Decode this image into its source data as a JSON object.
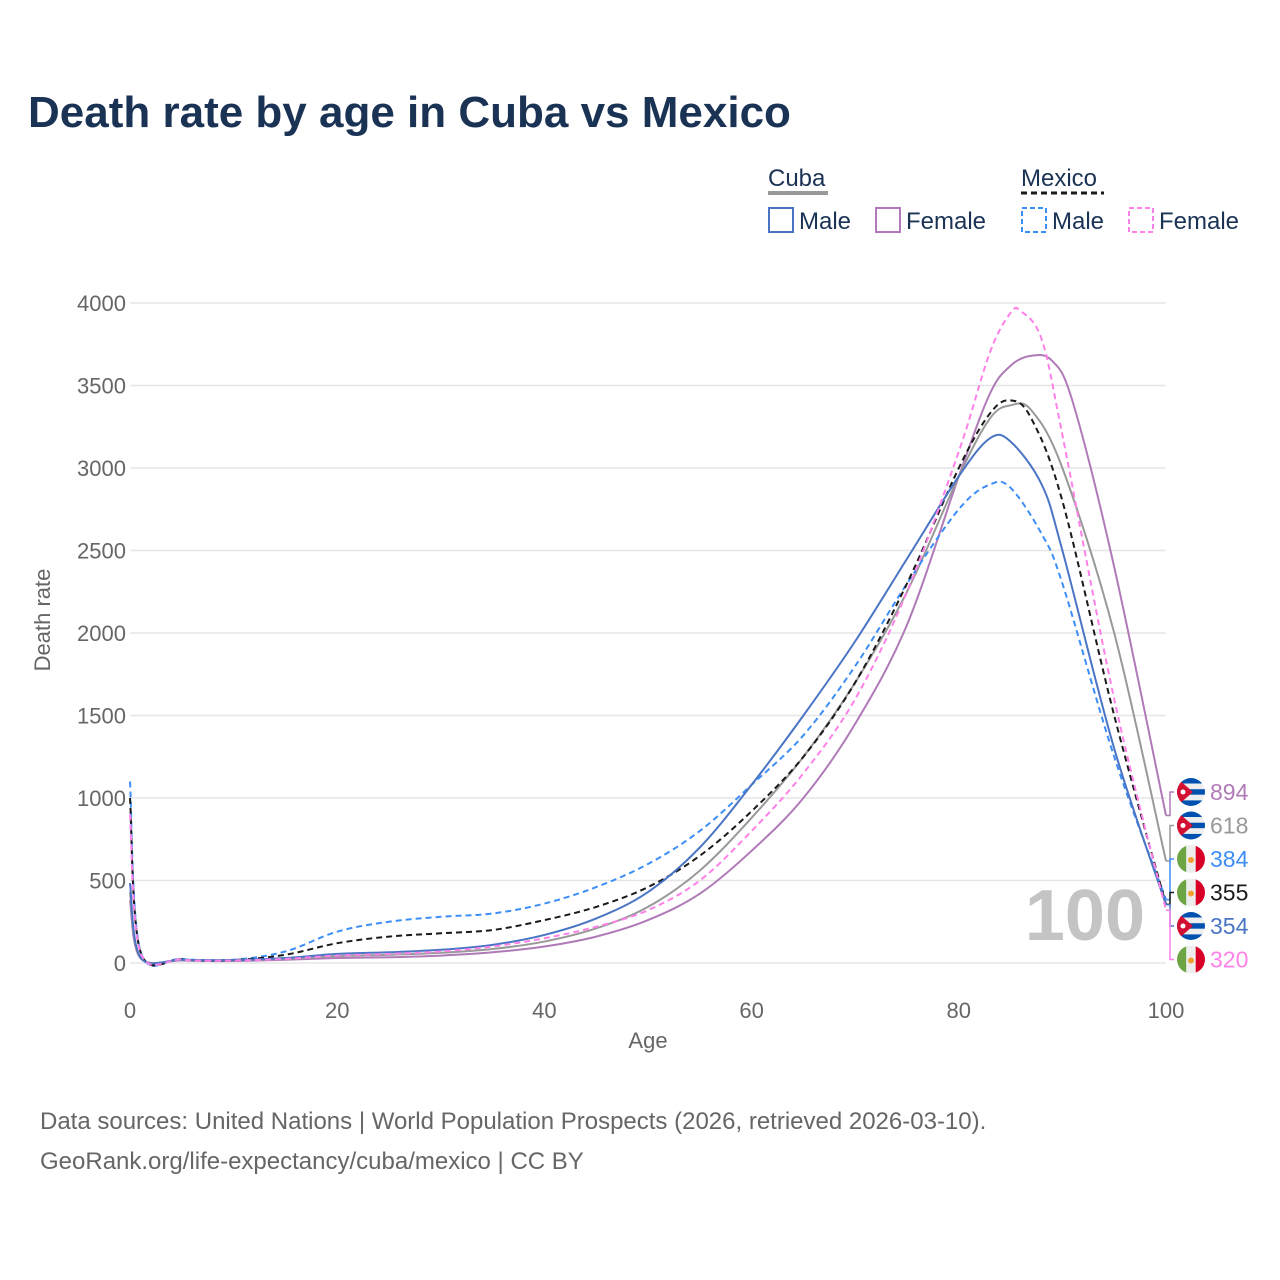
{
  "title": "Death rate by age in Cuba vs Mexico",
  "legend": {
    "cuba": "Cuba",
    "mexico": "Mexico",
    "male": "Male",
    "female": "Female"
  },
  "big_label": "100",
  "footer": {
    "line1": "Data sources: United Nations | World Population Prospects (2026, retrieved 2026-03-10).",
    "line2": "GeoRank.org/life-expectancy/cuba/mexico | CC BY"
  },
  "chart_data": {
    "type": "line",
    "title": "Death rate by age in Cuba vs Mexico",
    "xlabel": "Age",
    "ylabel": "Death rate",
    "xlim": [
      0,
      100
    ],
    "ylim": [
      0,
      4000
    ],
    "xticks": [
      0,
      20,
      40,
      60,
      80,
      100
    ],
    "yticks": [
      0,
      500,
      1000,
      1500,
      2000,
      2500,
      3000,
      3500,
      4000
    ],
    "grid": true,
    "legend_position": "top-right",
    "series": [
      {
        "name": "Cuba Female",
        "color": "#b07ab8",
        "dash": false,
        "flag": "cuba",
        "end_label": "894",
        "x": [
          0,
          1,
          5,
          10,
          15,
          20,
          25,
          30,
          35,
          40,
          45,
          50,
          55,
          60,
          65,
          70,
          75,
          80,
          83,
          85,
          87,
          89,
          91,
          95,
          100
        ],
        "y": [
          380,
          30,
          15,
          12,
          20,
          30,
          35,
          45,
          65,
          100,
          160,
          260,
          420,
          680,
          1000,
          1450,
          2050,
          2950,
          3450,
          3620,
          3680,
          3650,
          3400,
          2400,
          894
        ]
      },
      {
        "name": "Cuba",
        "color": "#999999",
        "dash": false,
        "flag": "cuba",
        "end_label": "618",
        "x": [
          0,
          1,
          5,
          10,
          15,
          20,
          25,
          30,
          35,
          40,
          45,
          50,
          55,
          60,
          65,
          70,
          75,
          80,
          83,
          85,
          87,
          90,
          95,
          100
        ],
        "y": [
          430,
          32,
          17,
          15,
          25,
          42,
          50,
          62,
          85,
          130,
          210,
          340,
          560,
          880,
          1250,
          1700,
          2250,
          2950,
          3300,
          3380,
          3350,
          3000,
          2000,
          618
        ]
      },
      {
        "name": "Mexico Male",
        "color": "#3e8ef7",
        "dash": true,
        "flag": "mexico",
        "end_label": "384",
        "x": [
          0,
          1,
          5,
          10,
          15,
          20,
          25,
          30,
          35,
          40,
          45,
          50,
          55,
          60,
          65,
          70,
          75,
          80,
          83,
          85,
          88,
          90,
          95,
          100
        ],
        "y": [
          1100,
          75,
          25,
          20,
          70,
          190,
          250,
          280,
          300,
          360,
          460,
          600,
          800,
          1080,
          1380,
          1800,
          2300,
          2750,
          2900,
          2880,
          2600,
          2300,
          1250,
          384
        ]
      },
      {
        "name": "Mexico",
        "color": "#1a1a1a",
        "dash": true,
        "flag": "mexico",
        "end_label": "355",
        "x": [
          0,
          1,
          5,
          10,
          15,
          20,
          25,
          30,
          35,
          40,
          45,
          50,
          55,
          60,
          65,
          70,
          75,
          80,
          83,
          85,
          87,
          90,
          95,
          100
        ],
        "y": [
          1000,
          70,
          22,
          18,
          50,
          120,
          160,
          180,
          200,
          260,
          340,
          460,
          650,
          920,
          1250,
          1700,
          2300,
          3000,
          3330,
          3410,
          3300,
          2800,
          1500,
          355
        ]
      },
      {
        "name": "Cuba Male",
        "color": "#4a74c4",
        "dash": false,
        "flag": "cuba",
        "end_label": "354",
        "x": [
          0,
          1,
          5,
          10,
          15,
          20,
          25,
          30,
          35,
          40,
          45,
          50,
          55,
          60,
          65,
          70,
          75,
          80,
          83,
          85,
          88,
          90,
          95,
          100
        ],
        "y": [
          485,
          35,
          20,
          18,
          30,
          55,
          65,
          80,
          110,
          170,
          270,
          430,
          700,
          1080,
          1500,
          1950,
          2450,
          2950,
          3180,
          3160,
          2900,
          2500,
          1300,
          354
        ]
      },
      {
        "name": "Mexico Female",
        "color": "#ff80e8",
        "dash": true,
        "flag": "mexico",
        "end_label": "320",
        "x": [
          0,
          1,
          5,
          10,
          15,
          20,
          25,
          30,
          35,
          40,
          45,
          50,
          55,
          60,
          65,
          70,
          75,
          80,
          83,
          85,
          86,
          88,
          90,
          95,
          100
        ],
        "y": [
          900,
          65,
          20,
          15,
          25,
          45,
          55,
          70,
          100,
          150,
          220,
          320,
          500,
          800,
          1150,
          1600,
          2250,
          3100,
          3700,
          3940,
          3950,
          3780,
          3200,
          1600,
          320
        ]
      }
    ]
  }
}
